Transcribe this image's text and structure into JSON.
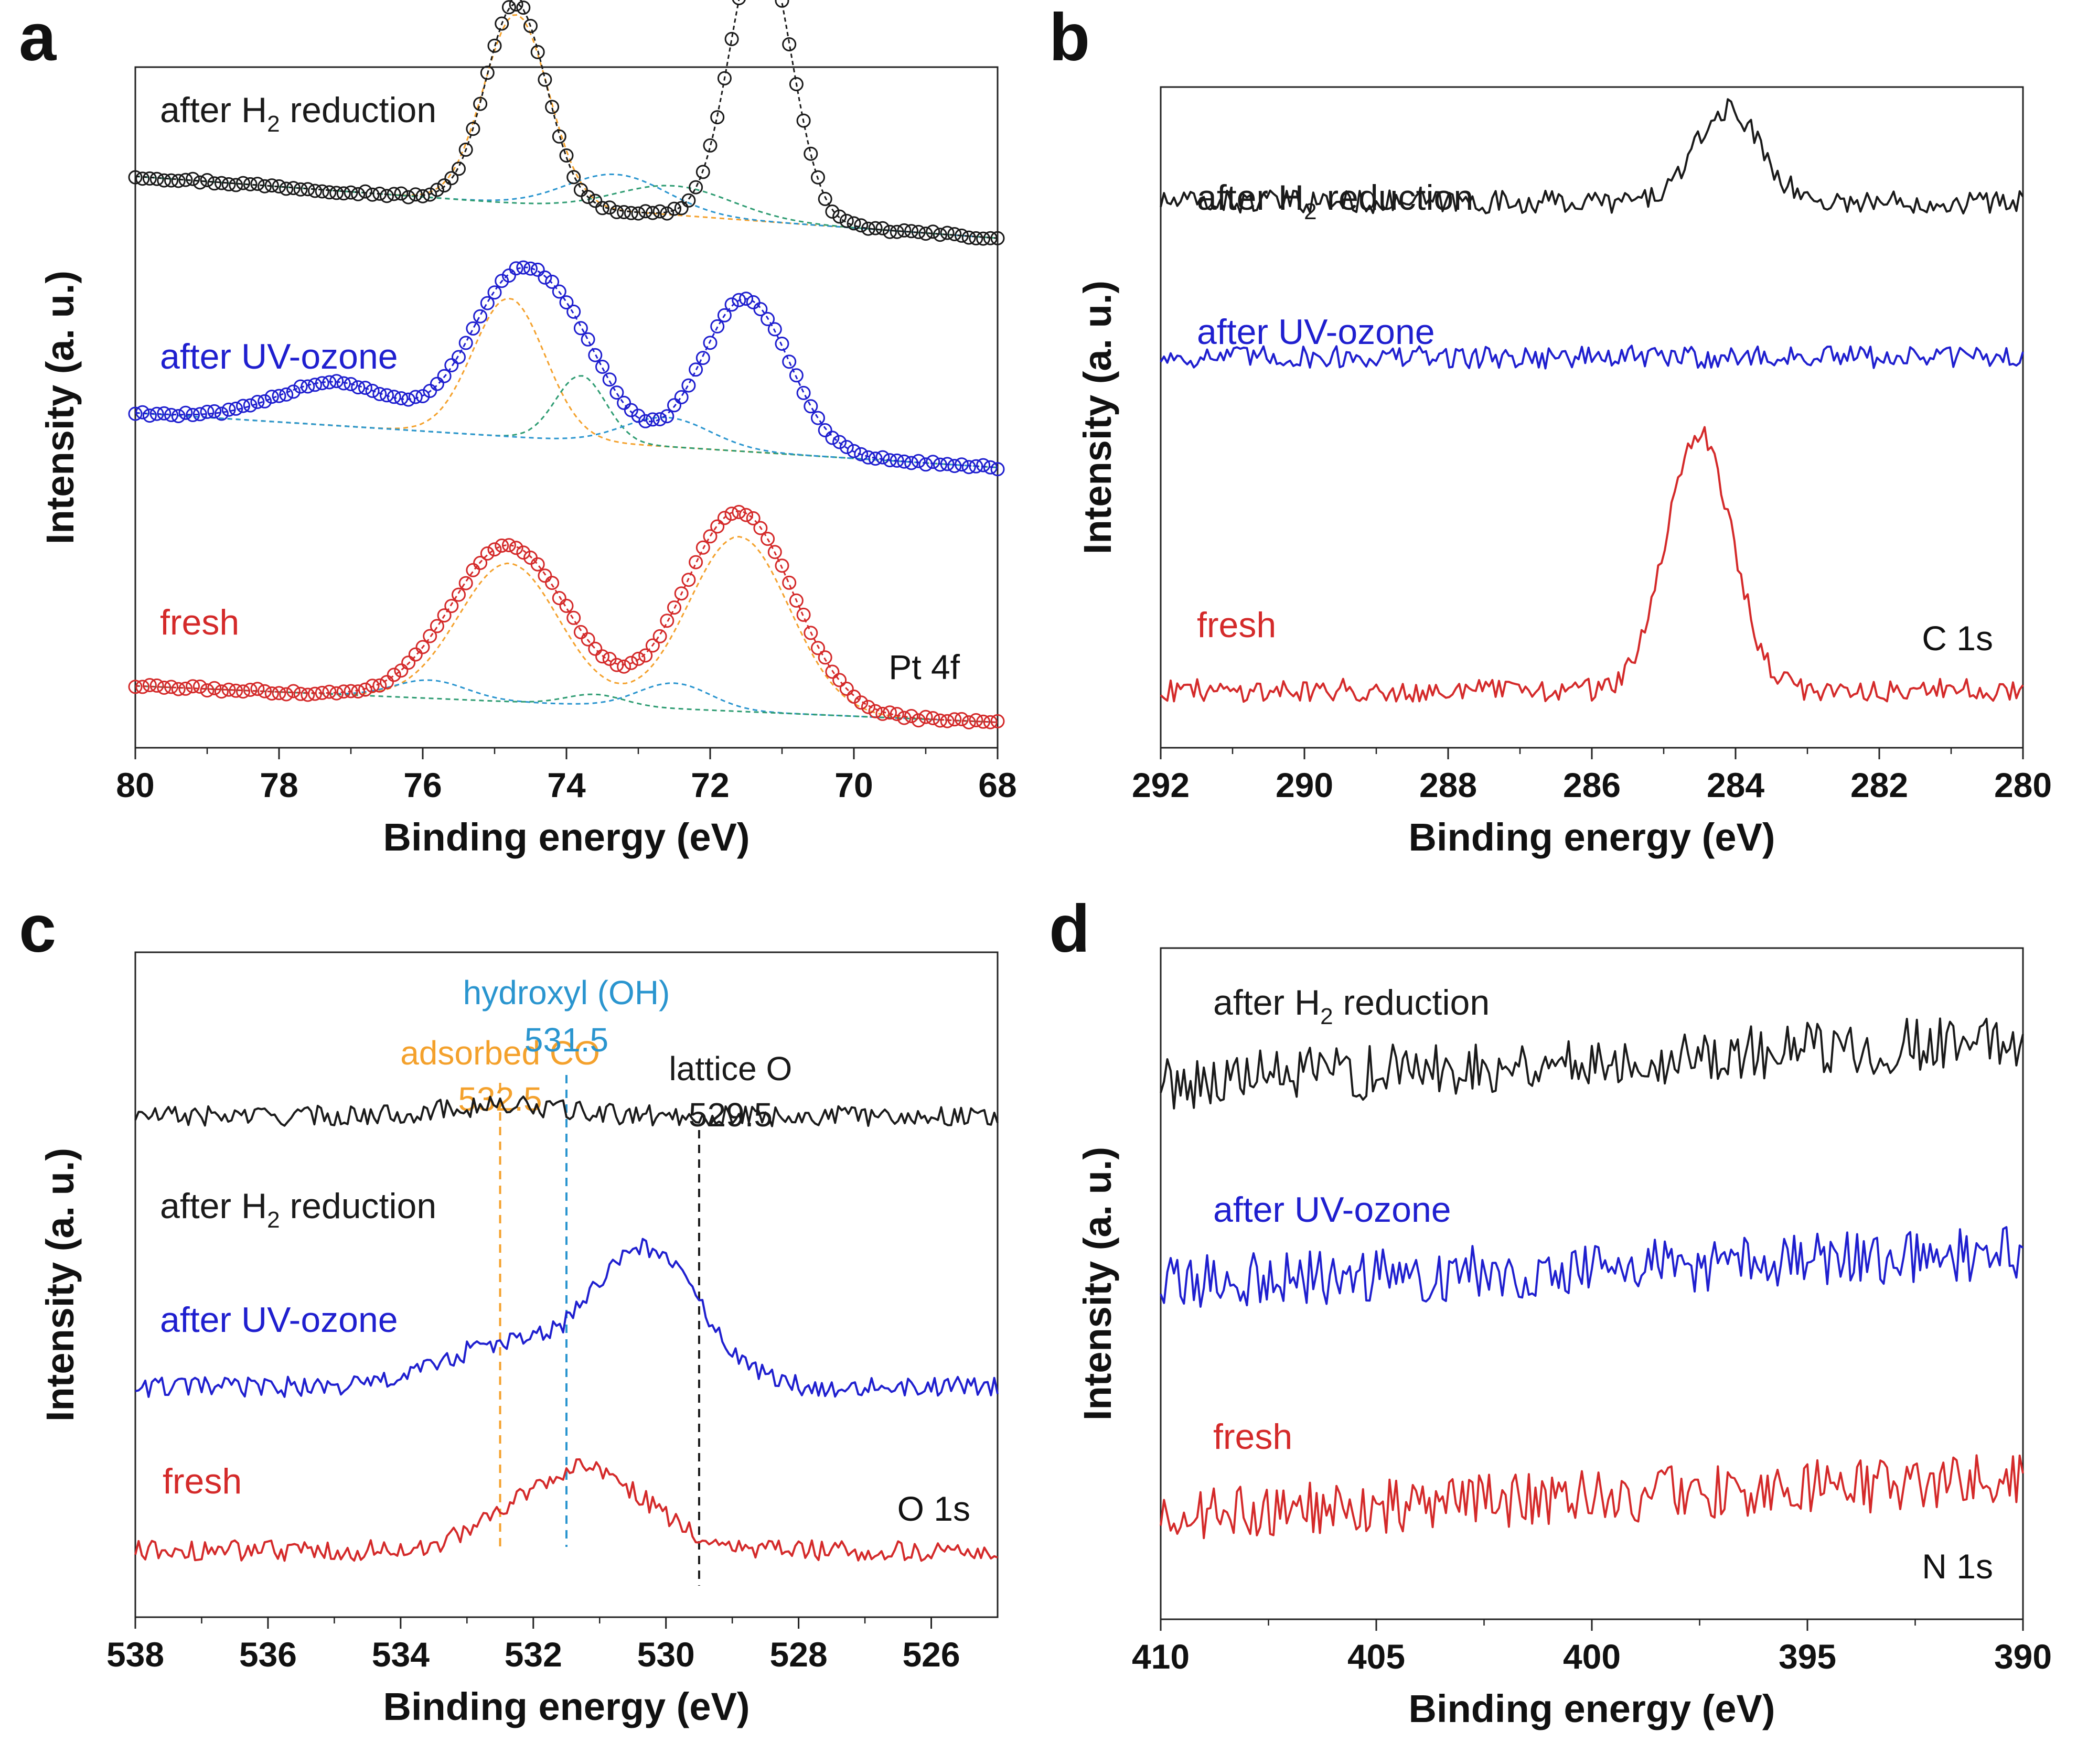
{
  "colors": {
    "black": "#1a1a1a",
    "blue": "#1f1fcf",
    "red": "#d42a2a",
    "orange": "#f4a12c",
    "cyan": "#2a95cf",
    "green": "#2e9c72"
  },
  "chart_data": [
    {
      "panel": "a",
      "type": "line",
      "title": "",
      "xlabel": "Binding energy (eV)",
      "ylabel": "Intensity (a. u.)",
      "xlim": [
        80,
        68
      ],
      "xticks": [
        "80",
        "78",
        "76",
        "74",
        "72",
        "70",
        "68"
      ],
      "annotation": "Pt 4f",
      "markers": "circles",
      "series": [
        {
          "name": "after H2 reduction",
          "label": "after H",
          "sub": "2",
          "label_rest": " reduction",
          "color": "black",
          "baseline": [
            0.95,
            0.78
          ],
          "peaks": [
            [
              74.7,
              0.55,
              0.42
            ],
            [
              71.3,
              0.78,
              0.42
            ]
          ],
          "components": [
            {
              "color": "orange",
              "peaks": [
                [
                  74.7,
                  0.52,
                  0.45
                ]
              ]
            },
            {
              "color": "cyan",
              "peaks": [
                [
                  73.3,
                  0.1,
                  0.7
                ]
              ]
            },
            {
              "color": "green",
              "peaks": [
                [
                  72.5,
                  0.08,
                  0.8
                ]
              ]
            }
          ]
        },
        {
          "name": "after UV-ozone",
          "label": "after UV-ozone",
          "color": "blue",
          "baseline": [
            0.3,
            0.15
          ],
          "peaks": [
            [
              77.2,
              0.12,
              0.8
            ],
            [
              74.7,
              0.43,
              0.65
            ],
            [
              73.8,
              0.15,
              0.5
            ],
            [
              71.5,
              0.42,
              0.6
            ]
          ],
          "components": [
            {
              "color": "orange",
              "peaks": [
                [
                  74.8,
                  0.38,
                  0.5
                ]
              ]
            },
            {
              "color": "green",
              "peaks": [
                [
                  73.8,
                  0.18,
                  0.35
                ]
              ]
            },
            {
              "color": "cyan",
              "peaks": [
                [
                  72.6,
                  0.08,
                  0.6
                ]
              ]
            }
          ]
        },
        {
          "name": "fresh",
          "label": "fresh",
          "color": "red",
          "baseline": [
            -0.45,
            -0.55
          ],
          "peaks": [
            [
              74.8,
              0.43,
              0.8
            ],
            [
              71.6,
              0.55,
              0.75
            ]
          ],
          "components": [
            {
              "color": "orange",
              "peaks": [
                [
                  74.8,
                  0.38,
                  0.7
                ],
                [
                  71.6,
                  0.48,
                  0.7
                ]
              ]
            },
            {
              "color": "cyan",
              "peaks": [
                [
                  75.9,
                  0.05,
                  0.5
                ],
                [
                  72.5,
                  0.07,
                  0.5
                ]
              ]
            },
            {
              "color": "green",
              "peaks": [
                [
                  73.6,
                  0.03,
                  0.4
                ]
              ]
            }
          ]
        }
      ]
    },
    {
      "panel": "b",
      "type": "line",
      "title": "",
      "xlabel": "Binding energy (eV)",
      "ylabel": "Intensity (a. u.)",
      "xlim": [
        292,
        280
      ],
      "xticks": [
        "292",
        "290",
        "288",
        "286",
        "284",
        "282",
        "280"
      ],
      "annotation": "C 1s",
      "series": [
        {
          "name": "after H2 reduction",
          "label": "after H",
          "sub": "2",
          "label_rest": " reduction",
          "color": "black",
          "baseline": [
            0.9,
            0.9
          ],
          "peaks": [
            [
              284.1,
              0.16,
              0.45
            ]
          ]
        },
        {
          "name": "after UV-ozone",
          "label": "after UV-ozone",
          "color": "blue",
          "baseline": [
            0.63,
            0.63
          ],
          "peaks": []
        },
        {
          "name": "fresh",
          "label": "fresh",
          "color": "red",
          "baseline": [
            0.05,
            0.05
          ],
          "peaks": [
            [
              284.5,
              0.45,
              0.45
            ]
          ]
        }
      ]
    },
    {
      "panel": "c",
      "type": "line",
      "title": "",
      "xlabel": "Binding energy (eV)",
      "ylabel": "Intensity (a. u.)",
      "xlim": [
        538,
        525
      ],
      "xticks": [
        "538",
        "536",
        "534",
        "532",
        "530",
        "528",
        "526"
      ],
      "annotation": "O 1s",
      "reference_lines": [
        {
          "x": 532.5,
          "name": "adsorbed CO",
          "value": "532.5",
          "color": "orange"
        },
        {
          "x": 531.5,
          "name": "hydroxyl (OH)",
          "value": "531.5",
          "color": "cyan"
        },
        {
          "x": 529.5,
          "name": "lattice O",
          "value": "529.5",
          "color": "black"
        }
      ],
      "series": [
        {
          "name": "after H2 reduction",
          "label": "after H",
          "sub": "2",
          "label_rest": " reduction",
          "color": "black",
          "baseline": [
            0.88,
            0.88
          ],
          "peaks": [
            [
              532.5,
              0.02,
              0.9
            ]
          ]
        },
        {
          "name": "after UV-ozone",
          "label": "after UV-ozone",
          "color": "blue",
          "baseline": [
            0.35,
            0.35
          ],
          "peaks": [
            [
              530.3,
              0.27,
              0.8
            ],
            [
              532.5,
              0.08,
              0.9
            ]
          ]
        },
        {
          "name": "fresh",
          "label": "fresh",
          "color": "red",
          "baseline": [
            0.03,
            0.03
          ],
          "peaks": [
            [
              531.3,
              0.16,
              1.0
            ]
          ]
        }
      ]
    },
    {
      "panel": "d",
      "type": "line",
      "title": "",
      "xlabel": "Binding energy (eV)",
      "ylabel": "Intensity (a. u.)",
      "xlim": [
        410,
        390
      ],
      "xticks": [
        "410",
        "405",
        "400",
        "395",
        "390"
      ],
      "annotation": "N 1s",
      "series": [
        {
          "name": "after H2 reduction",
          "label": "after H",
          "sub": "2",
          "label_rest": " reduction",
          "color": "black",
          "baseline": [
            0.83,
            0.9
          ],
          "peaks": []
        },
        {
          "name": "after UV-ozone",
          "label": "after UV-ozone",
          "color": "blue",
          "baseline": [
            0.5,
            0.55
          ],
          "peaks": []
        },
        {
          "name": "fresh",
          "label": "fresh",
          "color": "red",
          "baseline": [
            0.12,
            0.18
          ],
          "peaks": []
        }
      ]
    }
  ]
}
